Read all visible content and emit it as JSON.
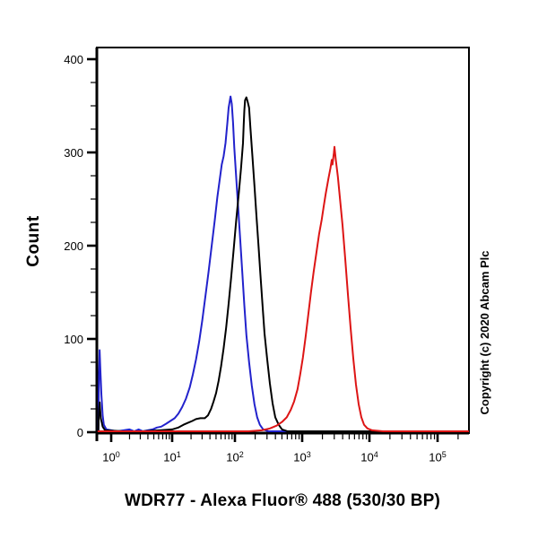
{
  "copyright": "Copyright (c) 2020 Abcam Plc",
  "chart_data": {
    "type": "line",
    "subtype": "flow-cytometry-histogram",
    "title": "",
    "xlabel": "WDR77 - Alexa Fluor® 488 (530/30 BP)",
    "ylabel": "Count",
    "x_scale": "log10",
    "x_range_log10": [
      -0.22,
      5.45
    ],
    "ylim": [
      0,
      415
    ],
    "grid": false,
    "legend": "none",
    "x_ticks": [
      {
        "base": "10",
        "exp": "0",
        "value": 0
      },
      {
        "base": "10",
        "exp": "1",
        "value": 1
      },
      {
        "base": "10",
        "exp": "2",
        "value": 2
      },
      {
        "base": "10",
        "exp": "3",
        "value": 3
      },
      {
        "base": "10",
        "exp": "4",
        "value": 4
      },
      {
        "base": "10",
        "exp": "5",
        "value": 5
      }
    ],
    "y_ticks": [
      {
        "label": "0",
        "value": 0
      },
      {
        "label": "100",
        "value": 100
      },
      {
        "label": "200",
        "value": 200
      },
      {
        "label": "300",
        "value": 300
      },
      {
        "label": "400",
        "value": 400
      }
    ],
    "y_minor_step": 25,
    "series": [
      {
        "name": "blue-curve",
        "color": "#2222cc",
        "approx_peak": {
          "x": 90,
          "count": 360
        },
        "points_log10x_count": [
          [
            -0.21,
            2
          ],
          [
            -0.2,
            60
          ],
          [
            -0.19,
            88
          ],
          [
            -0.18,
            70
          ],
          [
            -0.16,
            40
          ],
          [
            -0.14,
            18
          ],
          [
            -0.12,
            8
          ],
          [
            -0.08,
            3
          ],
          [
            0.1,
            1
          ],
          [
            0.3,
            3
          ],
          [
            0.38,
            1
          ],
          [
            0.45,
            3
          ],
          [
            0.52,
            1
          ],
          [
            0.6,
            2
          ],
          [
            0.68,
            3
          ],
          [
            0.75,
            5
          ],
          [
            0.82,
            6
          ],
          [
            0.9,
            9
          ],
          [
            0.97,
            12
          ],
          [
            1.04,
            15
          ],
          [
            1.1,
            20
          ],
          [
            1.16,
            27
          ],
          [
            1.22,
            36
          ],
          [
            1.28,
            48
          ],
          [
            1.33,
            62
          ],
          [
            1.38,
            78
          ],
          [
            1.43,
            97
          ],
          [
            1.48,
            120
          ],
          [
            1.53,
            146
          ],
          [
            1.58,
            172
          ],
          [
            1.63,
            200
          ],
          [
            1.68,
            228
          ],
          [
            1.72,
            252
          ],
          [
            1.76,
            272
          ],
          [
            1.79,
            287
          ],
          [
            1.82,
            296
          ],
          [
            1.85,
            310
          ],
          [
            1.88,
            332
          ],
          [
            1.9,
            348
          ],
          [
            1.92,
            356
          ],
          [
            1.93,
            360
          ],
          [
            1.95,
            352
          ],
          [
            1.97,
            332
          ],
          [
            1.99,
            305
          ],
          [
            2.02,
            272
          ],
          [
            2.05,
            238
          ],
          [
            2.08,
            205
          ],
          [
            2.11,
            170
          ],
          [
            2.14,
            136
          ],
          [
            2.17,
            104
          ],
          [
            2.21,
            75
          ],
          [
            2.25,
            50
          ],
          [
            2.29,
            30
          ],
          [
            2.33,
            16
          ],
          [
            2.37,
            8
          ],
          [
            2.42,
            3
          ],
          [
            2.5,
            1
          ],
          [
            3,
            1
          ],
          [
            4,
            1
          ],
          [
            5,
            1
          ],
          [
            5.45,
            1
          ]
        ]
      },
      {
        "name": "black-curve",
        "color": "#000000",
        "approx_peak": {
          "x": 140,
          "count": 359
        },
        "points_log10x_count": [
          [
            -0.21,
            2
          ],
          [
            -0.2,
            25
          ],
          [
            -0.19,
            32
          ],
          [
            -0.17,
            15
          ],
          [
            -0.14,
            6
          ],
          [
            -0.1,
            2
          ],
          [
            0.2,
            1
          ],
          [
            0.5,
            1
          ],
          [
            0.8,
            2
          ],
          [
            1.0,
            3
          ],
          [
            1.1,
            5
          ],
          [
            1.18,
            8
          ],
          [
            1.25,
            10
          ],
          [
            1.32,
            12
          ],
          [
            1.38,
            14
          ],
          [
            1.45,
            15
          ],
          [
            1.52,
            15
          ],
          [
            1.57,
            18
          ],
          [
            1.62,
            25
          ],
          [
            1.66,
            33
          ],
          [
            1.7,
            42
          ],
          [
            1.74,
            55
          ],
          [
            1.78,
            71
          ],
          [
            1.82,
            90
          ],
          [
            1.86,
            112
          ],
          [
            1.9,
            138
          ],
          [
            1.94,
            166
          ],
          [
            1.98,
            196
          ],
          [
            2.02,
            228
          ],
          [
            2.06,
            258
          ],
          [
            2.09,
            283
          ],
          [
            2.12,
            310
          ],
          [
            2.13,
            330
          ],
          [
            2.14,
            345
          ],
          [
            2.15,
            356
          ],
          [
            2.17,
            359
          ],
          [
            2.19,
            354
          ],
          [
            2.21,
            348
          ],
          [
            2.23,
            326
          ],
          [
            2.26,
            296
          ],
          [
            2.29,
            264
          ],
          [
            2.32,
            232
          ],
          [
            2.35,
            200
          ],
          [
            2.38,
            168
          ],
          [
            2.41,
            136
          ],
          [
            2.44,
            106
          ],
          [
            2.48,
            78
          ],
          [
            2.52,
            52
          ],
          [
            2.56,
            31
          ],
          [
            2.6,
            16
          ],
          [
            2.65,
            8
          ],
          [
            2.7,
            3
          ],
          [
            2.78,
            1
          ],
          [
            3.2,
            1
          ],
          [
            4,
            1
          ],
          [
            5,
            1
          ],
          [
            5.45,
            1
          ]
        ]
      },
      {
        "name": "red-curve",
        "color": "#dd1515",
        "approx_peak": {
          "x": 3000,
          "count": 306
        },
        "points_log10x_count": [
          [
            -0.21,
            1
          ],
          [
            0.5,
            1
          ],
          [
            1.5,
            1
          ],
          [
            2.2,
            1
          ],
          [
            2.4,
            2
          ],
          [
            2.52,
            4
          ],
          [
            2.62,
            7
          ],
          [
            2.7,
            11
          ],
          [
            2.77,
            16
          ],
          [
            2.83,
            24
          ],
          [
            2.88,
            33
          ],
          [
            2.93,
            46
          ],
          [
            2.97,
            62
          ],
          [
            3.01,
            80
          ],
          [
            3.05,
            102
          ],
          [
            3.09,
            126
          ],
          [
            3.13,
            150
          ],
          [
            3.17,
            172
          ],
          [
            3.21,
            192
          ],
          [
            3.25,
            212
          ],
          [
            3.29,
            228
          ],
          [
            3.32,
            242
          ],
          [
            3.35,
            256
          ],
          [
            3.37,
            264
          ],
          [
            3.39,
            272
          ],
          [
            3.42,
            283
          ],
          [
            3.44,
            292
          ],
          [
            3.45,
            287
          ],
          [
            3.47,
            299
          ],
          [
            3.48,
            306
          ],
          [
            3.5,
            292
          ],
          [
            3.53,
            274
          ],
          [
            3.56,
            252
          ],
          [
            3.6,
            222
          ],
          [
            3.64,
            186
          ],
          [
            3.68,
            148
          ],
          [
            3.72,
            112
          ],
          [
            3.76,
            79
          ],
          [
            3.8,
            51
          ],
          [
            3.84,
            30
          ],
          [
            3.88,
            16
          ],
          [
            3.92,
            8
          ],
          [
            3.97,
            4
          ],
          [
            4.04,
            2
          ],
          [
            4.2,
            1
          ],
          [
            5,
            1
          ],
          [
            5.45,
            1
          ]
        ]
      }
    ]
  }
}
